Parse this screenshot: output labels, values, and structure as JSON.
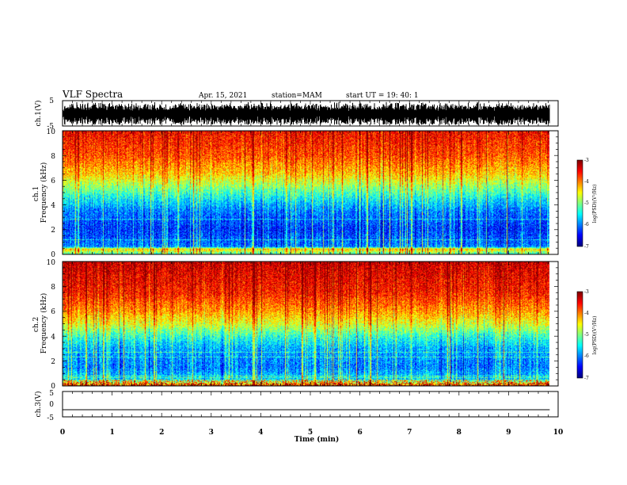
{
  "header": {
    "title": "VLF Spectra",
    "date": "Apr. 15, 2021",
    "station": "station=MAM",
    "start": "start UT =   19: 40: 1"
  },
  "chart_data": [
    {
      "type": "line",
      "name": "waveform-ch1",
      "ylabel": "ch.1(V)",
      "ylim": [
        -5,
        5
      ],
      "yticks": [
        "5",
        "-5"
      ],
      "xlim": [
        0,
        10
      ],
      "description_values": {
        "amplitude_range": [
          -4.5,
          4.5
        ],
        "x_end": 9.83
      }
    },
    {
      "type": "heatmap",
      "name": "spectrogram-ch1",
      "ylabel": "ch.1\nFrequency (kHz)",
      "ylim": [
        0,
        10
      ],
      "yticks": [
        "0",
        "2",
        "4",
        "6",
        "8",
        "10"
      ],
      "xlim": [
        0,
        10
      ],
      "x_end": 9.83,
      "colorbar": {
        "label": "log(PSD)(V²/Hz)",
        "range": [
          -7,
          -3
        ],
        "ticks": [
          "-3",
          "-4",
          "-5",
          "-6",
          "-7"
        ]
      },
      "profile_khz_to_level": [
        [
          0,
          -5.2
        ],
        [
          0.4,
          -4.3
        ],
        [
          0.6,
          -6.0
        ],
        [
          2,
          -6.3
        ],
        [
          3.5,
          -6.0
        ],
        [
          4.5,
          -5.5
        ],
        [
          5.5,
          -4.9
        ],
        [
          6.5,
          -4.3
        ],
        [
          8,
          -3.8
        ],
        [
          10,
          -3.5
        ]
      ]
    },
    {
      "type": "heatmap",
      "name": "spectrogram-ch2",
      "ylabel": "ch.2\nFrequency (kHz)",
      "ylim": [
        0,
        10
      ],
      "yticks": [
        "0",
        "2",
        "4",
        "6",
        "8",
        "10"
      ],
      "xlim": [
        0,
        10
      ],
      "x_end": 9.83,
      "colorbar": {
        "label": "log(PSD)(V²/Hz)",
        "range": [
          -7,
          -3
        ],
        "ticks": [
          "-3",
          "-4",
          "-5",
          "-6",
          "-7"
        ]
      },
      "profile_khz_to_level": [
        [
          0,
          -4.0
        ],
        [
          0.5,
          -5.6
        ],
        [
          1.5,
          -6.0
        ],
        [
          3,
          -5.8
        ],
        [
          4,
          -5.3
        ],
        [
          5,
          -4.6
        ],
        [
          6,
          -4.1
        ],
        [
          7.5,
          -3.6
        ],
        [
          10,
          -3.3
        ]
      ]
    },
    {
      "type": "line",
      "name": "waveform-ch3",
      "ylabel": "ch.3(V)",
      "ylim": [
        -5,
        5
      ],
      "yticks": [
        "5",
        "0",
        "-5"
      ],
      "xlim": [
        0,
        10
      ],
      "xlabel": "Time (min)",
      "xticks": [
        "0",
        "1",
        "2",
        "3",
        "4",
        "5",
        "6",
        "7",
        "8",
        "9",
        "10"
      ],
      "x": [
        0,
        9.83
      ],
      "y": [
        -2.2,
        -2.2
      ]
    }
  ]
}
